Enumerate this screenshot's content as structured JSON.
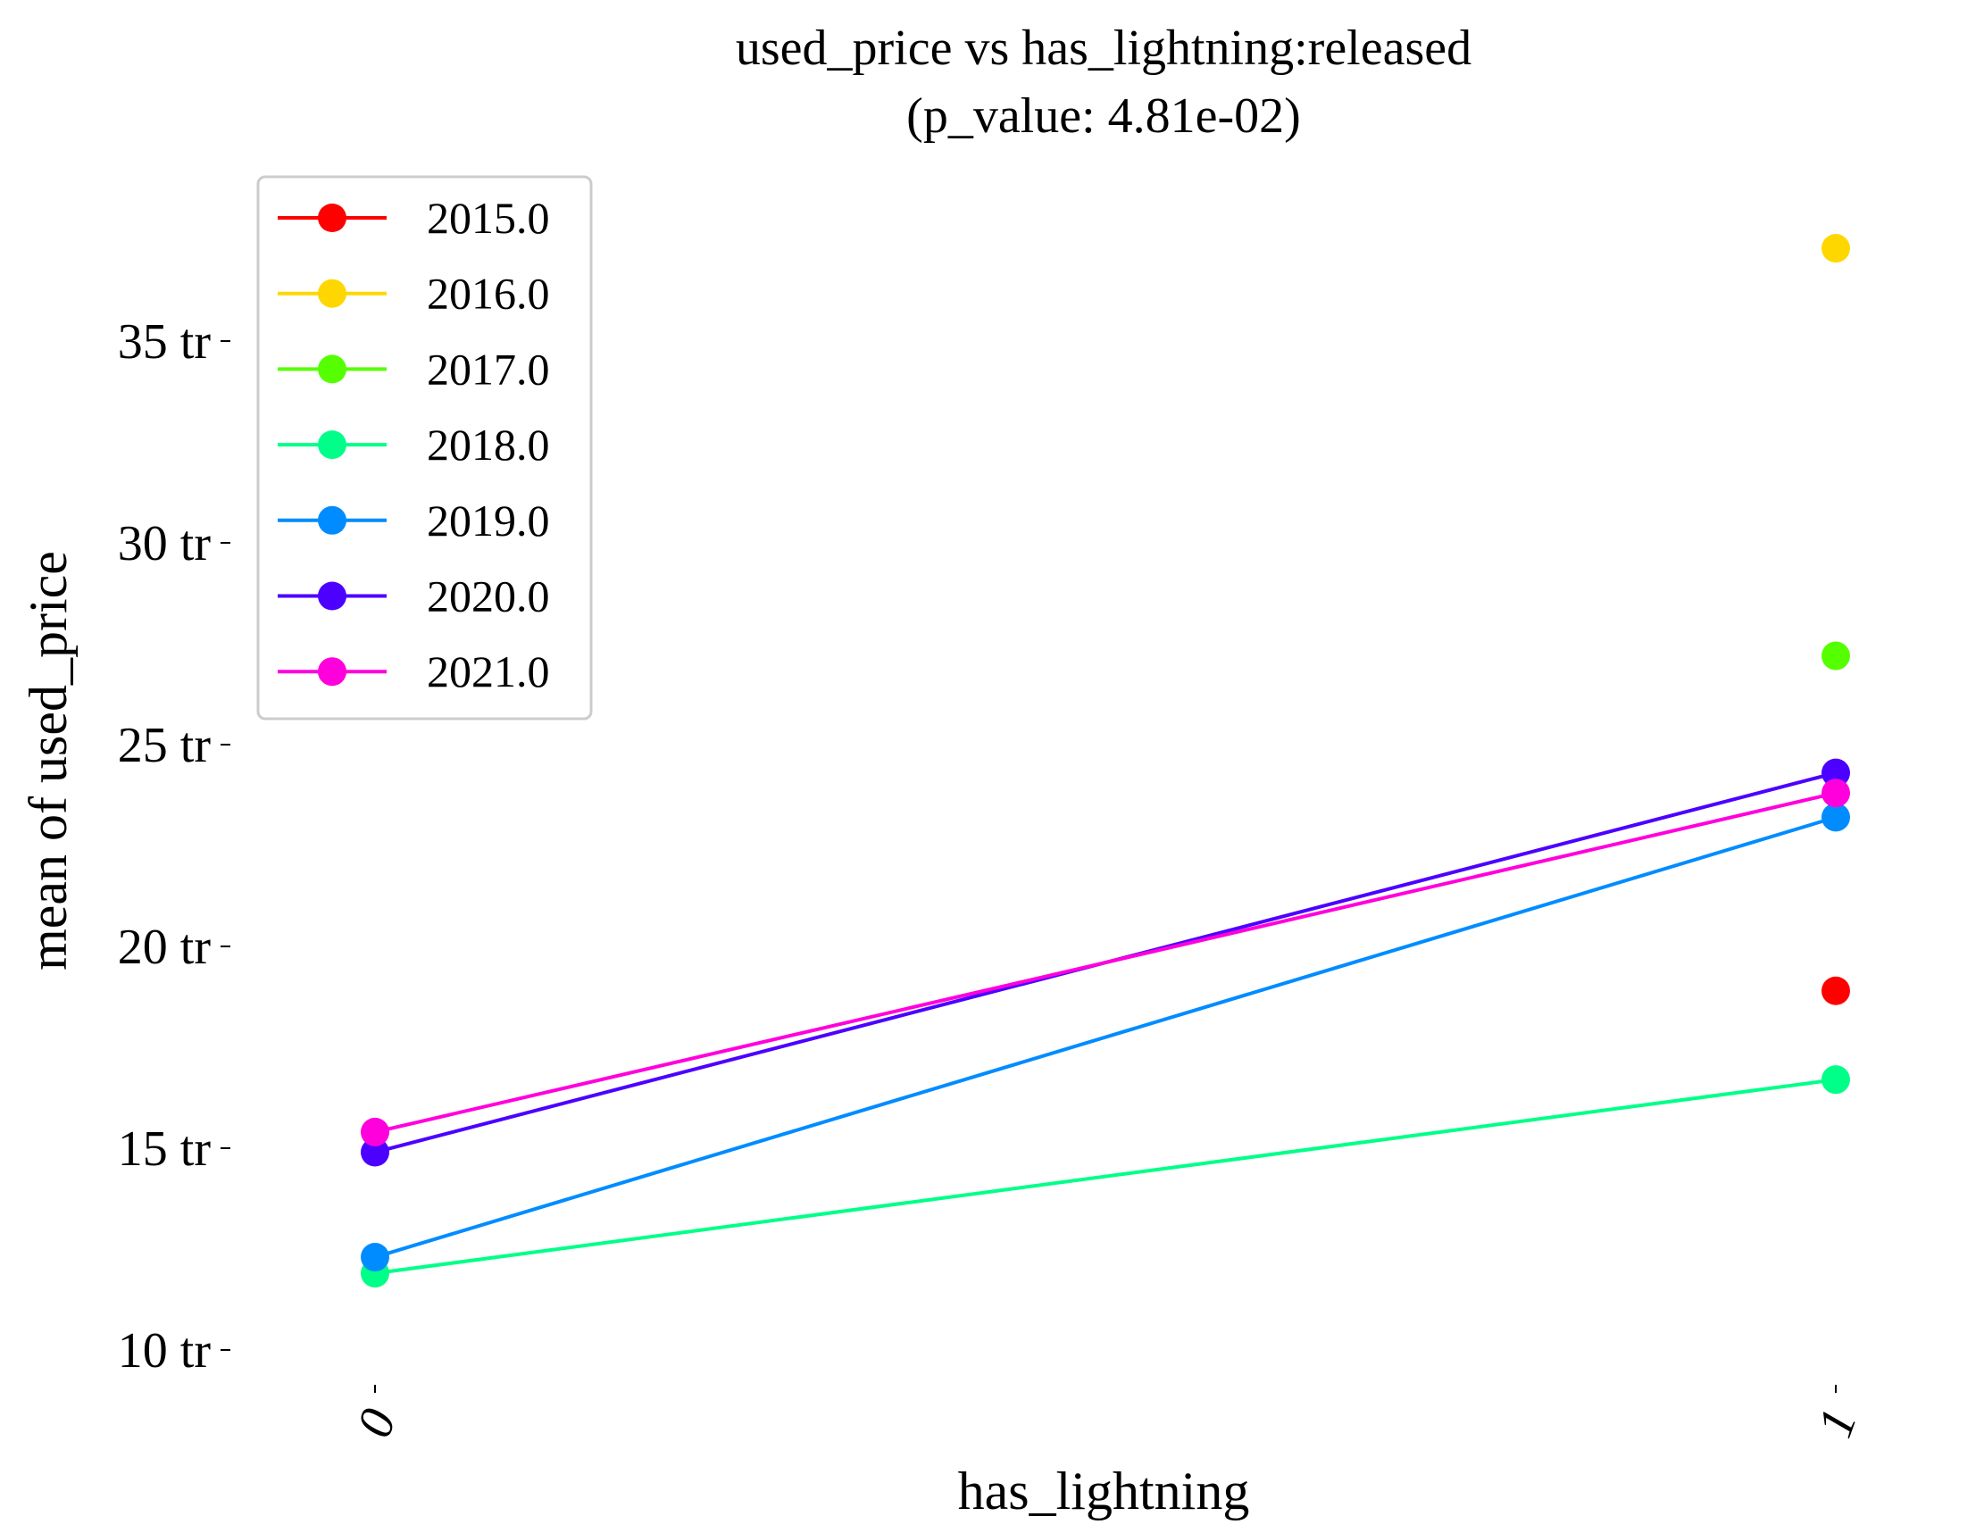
{
  "chart_data": {
    "type": "line",
    "title_line1": "used_price vs has_lightning:released",
    "title_line2": "(p_value: 4.81e-02)",
    "xlabel": "has_lightning",
    "ylabel": "mean of used_price",
    "categories": [
      "0",
      "1"
    ],
    "y_ticks": [
      {
        "value": 10,
        "label": "10 tr"
      },
      {
        "value": 15,
        "label": "15 tr"
      },
      {
        "value": 20,
        "label": "20 tr"
      },
      {
        "value": 25,
        "label": "25 tr"
      },
      {
        "value": 30,
        "label": "30 tr"
      },
      {
        "value": 35,
        "label": "35 tr"
      }
    ],
    "ylim": [
      9.5,
      38.5
    ],
    "grid": false,
    "legend_position": "upper-left",
    "series": [
      {
        "name": "2015.0",
        "color": "#ff0000",
        "values": [
          null,
          18.9
        ]
      },
      {
        "name": "2016.0",
        "color": "#ffd700",
        "values": [
          null,
          37.3
        ]
      },
      {
        "name": "2017.0",
        "color": "#55ff00",
        "values": [
          null,
          27.2
        ]
      },
      {
        "name": "2018.0",
        "color": "#00ff88",
        "values": [
          11.9,
          16.7
        ]
      },
      {
        "name": "2019.0",
        "color": "#008cff",
        "values": [
          12.3,
          23.2
        ]
      },
      {
        "name": "2020.0",
        "color": "#4c00ff",
        "values": [
          14.9,
          24.3
        ]
      },
      {
        "name": "2021.0",
        "color": "#ff00dd",
        "values": [
          15.4,
          23.8
        ]
      }
    ]
  }
}
